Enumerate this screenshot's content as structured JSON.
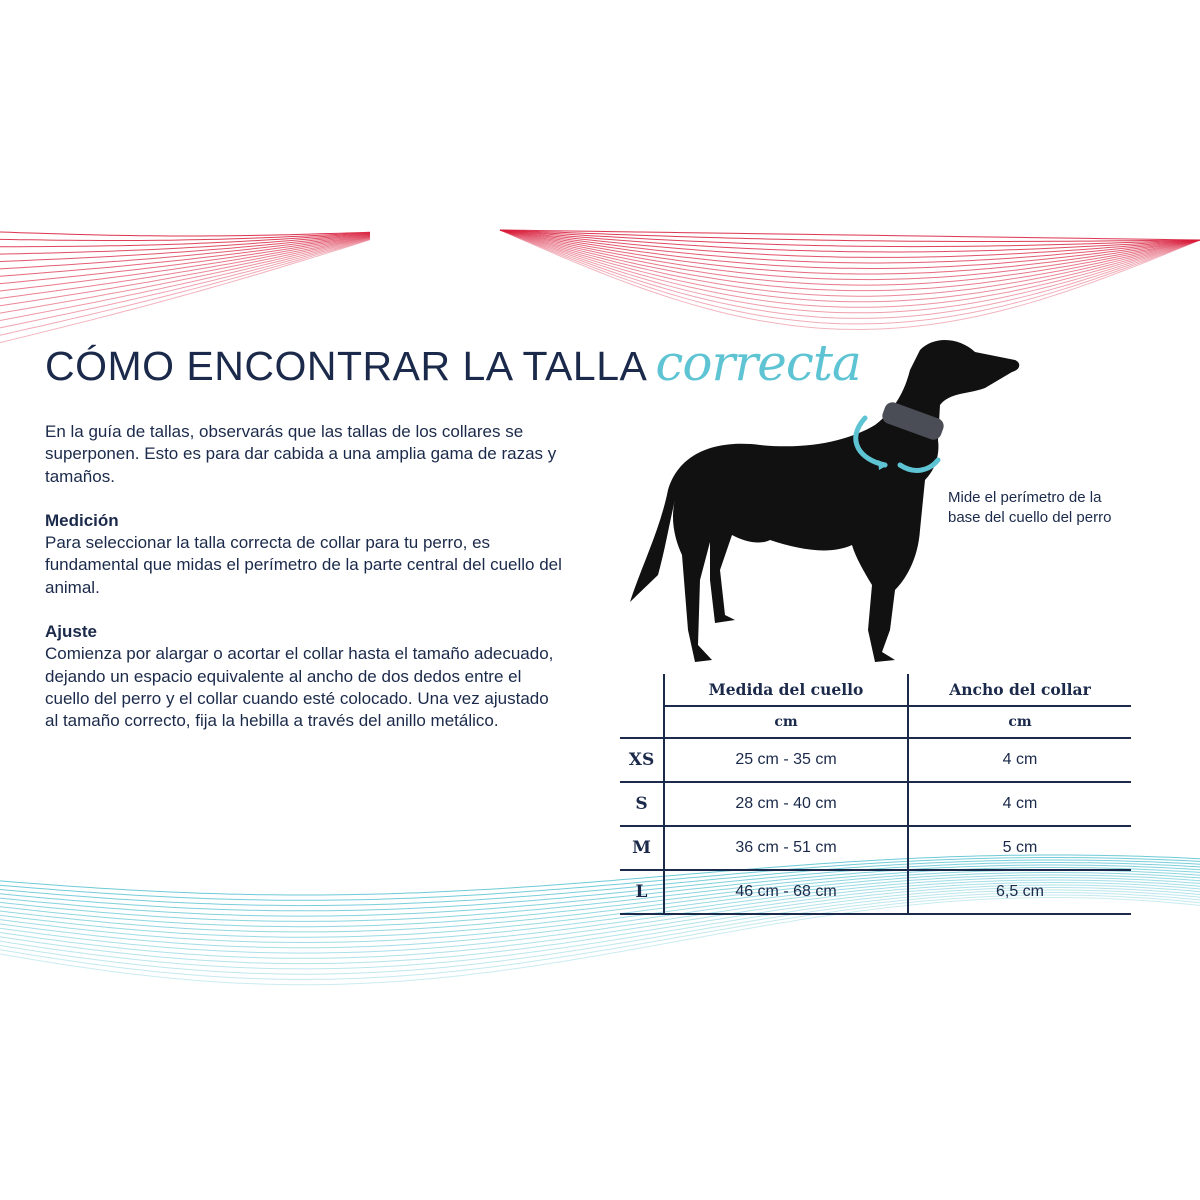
{
  "colors": {
    "navy": "#1b2a4a",
    "teal": "#5ec4d3",
    "red": "#d81e3c"
  },
  "title": {
    "main": "CÓMO ENCONTRAR LA TALLA",
    "accent": "correcta"
  },
  "intro": "En la guía de tallas, observarás que las tallas de los collares se superponen. Esto es para dar cabida a una amplia gama de razas y tamaños.",
  "sections": [
    {
      "heading": "Medición",
      "text": "Para seleccionar la talla correcta de collar para tu perro, es fundamental que midas el perímetro de la parte central del cuello del animal."
    },
    {
      "heading": "Ajuste",
      "text": "Comienza por alargar o acortar el collar hasta el tamaño adecuado, dejando un espacio equivalente al ancho de dos dedos entre el cuello del perro y el collar cuando esté colocado. Una vez ajustado al tamaño correcto, fija la hebilla a través del anillo metálico."
    }
  ],
  "caption": {
    "line1": "Mide el perímetro de la",
    "line2": "base del cuello del perro"
  },
  "table": {
    "headers": [
      "Medida del cuello",
      "Ancho del collar"
    ],
    "units": [
      "cm",
      "cm"
    ],
    "rows": [
      {
        "size": "XS",
        "neck": "25 cm - 35 cm",
        "width": "4 cm"
      },
      {
        "size": "S",
        "neck": "28 cm - 40 cm",
        "width": "4 cm"
      },
      {
        "size": "M",
        "neck": "36 cm - 51 cm",
        "width": "5 cm"
      },
      {
        "size": "L",
        "neck": "46 cm - 68 cm",
        "width": "6,5 cm"
      }
    ]
  }
}
